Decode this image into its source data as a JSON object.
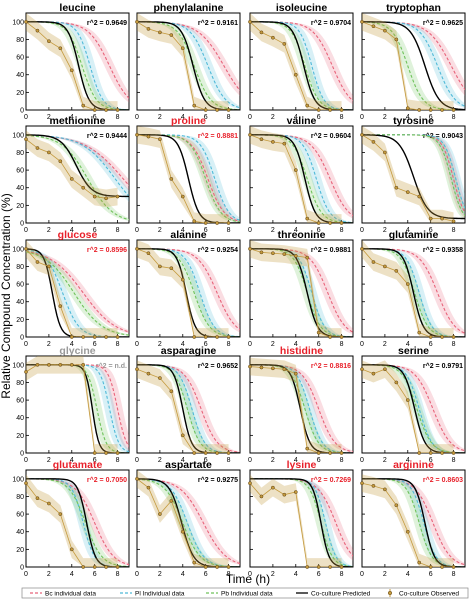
{
  "figure": {
    "ylabel": "Relative Compound Concentration (%)",
    "xlabel": "Time (h)"
  },
  "colors": {
    "bc": "#e8637a",
    "pl": "#4fb9d8",
    "pb": "#6fc25a",
    "predicted": "#000000",
    "observed": "#c49a3e",
    "title_black": "#000000",
    "title_red": "#e8212b",
    "title_gray": "#999999"
  },
  "legend": [
    {
      "key": "bc",
      "label": "Bc individual data",
      "style": "dashed"
    },
    {
      "key": "pl",
      "label": "Pl Individual data",
      "style": "dashed"
    },
    {
      "key": "pb",
      "label": "Pb Individual data",
      "style": "dashed"
    },
    {
      "key": "predicted",
      "label": "Co-culture Predicted",
      "style": "solid"
    },
    {
      "key": "observed",
      "label": "Co-culture Observed",
      "style": "marker"
    }
  ],
  "chart_data": [
    {
      "type": "line",
      "title": "leucine",
      "title_color": "black",
      "r2": "r^2 = 0.9649",
      "ylim": [
        0,
        110
      ],
      "xlim": [
        0,
        9
      ],
      "series": [
        {
          "name": "Bc",
          "midpoint": 7.3,
          "slope": 1.1
        },
        {
          "name": "Pl",
          "midpoint": 5.6,
          "slope": 1.8
        },
        {
          "name": "Pb",
          "midpoint": 4.9,
          "slope": 1.6
        },
        {
          "name": "Co-culture Predicted",
          "midpoint": 4.6,
          "slope": 2.2
        }
      ],
      "observed": {
        "x": [
          0,
          1,
          2,
          3,
          4,
          5,
          6,
          7,
          8
        ],
        "y": [
          100,
          90,
          78,
          70,
          45,
          5,
          0,
          0,
          0
        ]
      }
    },
    {
      "type": "line",
      "title": "phenylalanine",
      "title_color": "black",
      "r2": "r^2 = 0.9161",
      "ylim": [
        0,
        110
      ],
      "xlim": [
        0,
        9
      ],
      "series": [
        {
          "name": "Bc",
          "midpoint": 7.6,
          "slope": 0.9
        },
        {
          "name": "Pl",
          "midpoint": 6.2,
          "slope": 1.3
        },
        {
          "name": "Pb",
          "midpoint": 5.0,
          "slope": 1.4
        },
        {
          "name": "Co-culture Predicted",
          "midpoint": 4.9,
          "slope": 2.0
        }
      ],
      "observed": {
        "x": [
          0,
          1,
          2,
          3,
          4,
          5,
          6,
          7,
          8
        ],
        "y": [
          100,
          92,
          88,
          85,
          70,
          5,
          0,
          0,
          0
        ]
      }
    },
    {
      "type": "line",
      "title": "isoleucine",
      "title_color": "black",
      "r2": "r^2 = 0.9704",
      "ylim": [
        0,
        110
      ],
      "xlim": [
        0,
        9
      ],
      "series": [
        {
          "name": "Bc",
          "midpoint": 7.2,
          "slope": 1.2
        },
        {
          "name": "Pl",
          "midpoint": 5.4,
          "slope": 1.9
        },
        {
          "name": "Pb",
          "midpoint": 4.8,
          "slope": 1.7
        },
        {
          "name": "Co-culture Predicted",
          "midpoint": 4.7,
          "slope": 2.1
        }
      ],
      "observed": {
        "x": [
          0,
          1,
          2,
          3,
          4,
          5,
          6,
          7,
          8
        ],
        "y": [
          100,
          88,
          82,
          75,
          40,
          5,
          0,
          0,
          0
        ]
      }
    },
    {
      "type": "line",
      "title": "tryptophan",
      "title_color": "black",
      "r2": "r^2 = 0.9625",
      "ylim": [
        0,
        110
      ],
      "xlim": [
        0,
        9
      ],
      "series": [
        {
          "name": "Bc",
          "midpoint": 7.8,
          "slope": 1.0
        },
        {
          "name": "Pl",
          "midpoint": 6.6,
          "slope": 1.3
        },
        {
          "name": "Pb",
          "midpoint": 4.0,
          "slope": 1.5
        },
        {
          "name": "Co-culture Predicted",
          "midpoint": 5.5,
          "slope": 1.6
        }
      ],
      "observed": {
        "x": [
          0,
          1,
          2,
          3,
          4,
          5,
          6,
          7,
          8
        ],
        "y": [
          100,
          95,
          90,
          80,
          2,
          0,
          0,
          0,
          0
        ]
      }
    },
    {
      "type": "line",
      "title": "methionine",
      "title_color": "black",
      "r2": "r^2 = 0.9444",
      "ylim": [
        0,
        110
      ],
      "xlim": [
        0,
        9
      ],
      "series": [
        {
          "name": "Bc",
          "midpoint": 8.5,
          "slope": 0.6
        },
        {
          "name": "Pl",
          "midpoint": 7.8,
          "slope": 0.7
        },
        {
          "name": "Pb",
          "midpoint": 5.4,
          "slope": 0.9
        },
        {
          "name": "Co-culture Predicted",
          "midpoint": 4.4,
          "slope": 1.5,
          "floor": 30
        }
      ],
      "observed": {
        "x": [
          0,
          1,
          2,
          3,
          4,
          5,
          6,
          7,
          8
        ],
        "y": [
          95,
          85,
          80,
          70,
          50,
          40,
          30,
          28,
          30
        ]
      }
    },
    {
      "type": "line",
      "title": "proline",
      "title_color": "red",
      "r2": "r^2 = 0.8881",
      "ylim": [
        0,
        110
      ],
      "xlim": [
        0,
        9
      ],
      "series": [
        {
          "name": "Bc",
          "midpoint": 6.2,
          "slope": 1.4
        },
        {
          "name": "Pl",
          "midpoint": 6.8,
          "slope": 1.6
        },
        {
          "name": "Pb",
          "midpoint": 6.0,
          "slope": 1.5
        },
        {
          "name": "Co-culture Predicted",
          "midpoint": 4.5,
          "slope": 2.2
        }
      ],
      "observed": {
        "x": [
          0,
          1,
          2,
          3,
          4,
          5,
          6,
          7,
          8
        ],
        "y": [
          100,
          98,
          95,
          50,
          30,
          2,
          0,
          0,
          0
        ]
      }
    },
    {
      "type": "line",
      "title": "valine",
      "title_color": "black",
      "r2": "r^2 = 0.9604",
      "ylim": [
        0,
        110
      ],
      "xlim": [
        0,
        9
      ],
      "series": [
        {
          "name": "Bc",
          "midpoint": 7.0,
          "slope": 1.2
        },
        {
          "name": "Pl",
          "midpoint": 5.8,
          "slope": 1.7
        },
        {
          "name": "Pb",
          "midpoint": 5.0,
          "slope": 1.6
        },
        {
          "name": "Co-culture Predicted",
          "midpoint": 4.8,
          "slope": 2.2
        }
      ],
      "observed": {
        "x": [
          0,
          1,
          2,
          3,
          4,
          5,
          6,
          7,
          8
        ],
        "y": [
          100,
          95,
          92,
          90,
          60,
          5,
          0,
          0,
          0
        ]
      }
    },
    {
      "type": "line",
      "title": "tyrosine",
      "title_color": "black",
      "r2": "r^2 = 0.9043",
      "ylim": [
        0,
        110
      ],
      "xlim": [
        0,
        9
      ],
      "series": [
        {
          "name": "Bc",
          "midpoint": 8.0,
          "slope": 2.0
        },
        {
          "name": "Pl",
          "midpoint": 8.2,
          "slope": 2.0
        },
        {
          "name": "Pb",
          "midpoint": 7.8,
          "slope": 2.0
        },
        {
          "name": "Co-culture Predicted",
          "midpoint": 4.5,
          "slope": 1.6,
          "floor": 5
        }
      ],
      "observed": {
        "x": [
          0,
          1,
          2,
          3,
          4,
          5,
          6,
          7,
          8
        ],
        "y": [
          100,
          92,
          80,
          40,
          35,
          30,
          5,
          5,
          2
        ]
      }
    },
    {
      "type": "line",
      "title": "glucose",
      "title_color": "red",
      "r2": "r^2 = 0.8596",
      "ylim": [
        0,
        110
      ],
      "xlim": [
        0,
        9
      ],
      "series": [
        {
          "name": "Bc",
          "midpoint": 5.0,
          "slope": 0.7
        },
        {
          "name": "Pl",
          "midpoint": 3.2,
          "slope": 1.4
        },
        {
          "name": "Pb",
          "midpoint": 4.2,
          "slope": 0.8
        },
        {
          "name": "Co-culture Predicted",
          "midpoint": 2.3,
          "slope": 2.8
        }
      ],
      "observed": {
        "x": [
          0,
          1,
          2,
          3,
          4,
          5,
          6,
          7,
          8
        ],
        "y": [
          100,
          85,
          80,
          35,
          0,
          0,
          0,
          0,
          0
        ]
      }
    },
    {
      "type": "line",
      "title": "alanine",
      "title_color": "black",
      "r2": "r^2 = 0.9254",
      "ylim": [
        0,
        110
      ],
      "xlim": [
        0,
        9
      ],
      "series": [
        {
          "name": "Bc",
          "midpoint": 7.0,
          "slope": 1.2
        },
        {
          "name": "Pl",
          "midpoint": 5.5,
          "slope": 1.6
        },
        {
          "name": "Pb",
          "midpoint": 5.0,
          "slope": 1.5
        },
        {
          "name": "Co-culture Predicted",
          "midpoint": 4.3,
          "slope": 2.5
        }
      ],
      "observed": {
        "x": [
          0,
          1,
          2,
          3,
          4,
          5,
          6,
          7,
          8
        ],
        "y": [
          100,
          95,
          80,
          78,
          65,
          0,
          0,
          0,
          0
        ]
      }
    },
    {
      "type": "line",
      "title": "threonine",
      "title_color": "black",
      "r2": "r^2 = 0.9881",
      "ylim": [
        0,
        110
      ],
      "xlim": [
        0,
        9
      ],
      "series": [
        {
          "name": "Bc",
          "midpoint": 6.8,
          "slope": 1.3
        },
        {
          "name": "Pl",
          "midpoint": 5.4,
          "slope": 1.8
        },
        {
          "name": "Pb",
          "midpoint": 5.0,
          "slope": 1.7
        },
        {
          "name": "Co-culture Predicted",
          "midpoint": 5.0,
          "slope": 2.2
        }
      ],
      "observed": {
        "x": [
          0,
          1,
          2,
          3,
          4,
          5,
          6,
          7,
          8
        ],
        "y": [
          100,
          96,
          95,
          94,
          92,
          90,
          5,
          0,
          0
        ]
      }
    },
    {
      "type": "line",
      "title": "glutamine",
      "title_color": "black",
      "r2": "r^2 = 0.9358",
      "ylim": [
        0,
        110
      ],
      "xlim": [
        0,
        9
      ],
      "series": [
        {
          "name": "Bc",
          "midpoint": 6.6,
          "slope": 1.3
        },
        {
          "name": "Pl",
          "midpoint": 5.0,
          "slope": 1.8
        },
        {
          "name": "Pb",
          "midpoint": 4.6,
          "slope": 1.7
        },
        {
          "name": "Co-culture Predicted",
          "midpoint": 4.5,
          "slope": 2.3
        }
      ],
      "observed": {
        "x": [
          0,
          1,
          2,
          3,
          4,
          5,
          6,
          7,
          8
        ],
        "y": [
          100,
          85,
          80,
          75,
          60,
          5,
          0,
          0,
          0
        ]
      }
    },
    {
      "type": "line",
      "title": "glycine",
      "title_color": "gray",
      "r2": "r^2 = n.d.",
      "ylim": [
        0,
        110
      ],
      "xlim": [
        0,
        9
      ],
      "series": [
        {
          "name": "Bc",
          "midpoint": 8.0,
          "slope": 2.5
        },
        {
          "name": "Pl",
          "midpoint": 7.3,
          "slope": 2.5
        },
        {
          "name": "Pb",
          "midpoint": 6.2,
          "slope": 2.5
        },
        {
          "name": "Co-culture Predicted",
          "midpoint": 5.8,
          "slope": 3.5
        }
      ],
      "observed": {
        "x": [
          0,
          1,
          2,
          3,
          4,
          5,
          6,
          7,
          8
        ],
        "y": [
          92,
          100,
          100,
          100,
          100,
          100,
          0,
          0,
          0
        ]
      }
    },
    {
      "type": "line",
      "title": "asparagine",
      "title_color": "black",
      "r2": "r^2 = 0.9652",
      "ylim": [
        0,
        110
      ],
      "xlim": [
        0,
        9
      ],
      "series": [
        {
          "name": "Bc",
          "midpoint": 5.6,
          "slope": 1.4
        },
        {
          "name": "Pl",
          "midpoint": 4.8,
          "slope": 1.8
        },
        {
          "name": "Pb",
          "midpoint": 4.4,
          "slope": 1.8
        },
        {
          "name": "Co-culture Predicted",
          "midpoint": 4.0,
          "slope": 2.6
        }
      ],
      "observed": {
        "x": [
          0,
          1,
          2,
          3,
          4,
          5,
          6,
          7,
          8
        ],
        "y": [
          95,
          90,
          85,
          70,
          20,
          0,
          0,
          0,
          0
        ]
      }
    },
    {
      "type": "line",
      "title": "histidine",
      "title_color": "red",
      "r2": "r^2 = 0.8816",
      "ylim": [
        0,
        110
      ],
      "xlim": [
        0,
        9
      ],
      "series": [
        {
          "name": "Bc",
          "midpoint": 6.0,
          "slope": 1.4
        },
        {
          "name": "Pl",
          "midpoint": 5.2,
          "slope": 1.8
        },
        {
          "name": "Pb",
          "midpoint": 4.8,
          "slope": 1.7
        },
        {
          "name": "Co-culture Predicted",
          "midpoint": 4.4,
          "slope": 2.4
        }
      ],
      "observed": {
        "x": [
          0,
          1,
          2,
          3,
          4,
          5,
          6,
          7,
          8
        ],
        "y": [
          98,
          97,
          96,
          95,
          90,
          5,
          0,
          0,
          0
        ]
      }
    },
    {
      "type": "line",
      "title": "serine",
      "title_color": "black",
      "r2": "r^2 = 0.9791",
      "ylim": [
        0,
        110
      ],
      "xlim": [
        0,
        9
      ],
      "series": [
        {
          "name": "Bc",
          "midpoint": 6.2,
          "slope": 1.3
        },
        {
          "name": "Pl",
          "midpoint": 5.0,
          "slope": 1.8
        },
        {
          "name": "Pb",
          "midpoint": 4.8,
          "slope": 1.6
        },
        {
          "name": "Co-culture Predicted",
          "midpoint": 4.6,
          "slope": 2.2
        }
      ],
      "observed": {
        "x": [
          0,
          1,
          2,
          3,
          4,
          5,
          6,
          7,
          8
        ],
        "y": [
          95,
          90,
          95,
          80,
          60,
          0,
          0,
          0,
          0
        ]
      }
    },
    {
      "type": "line",
      "title": "glutamate",
      "title_color": "red",
      "r2": "r^2 = 0.7050",
      "ylim": [
        0,
        110
      ],
      "xlim": [
        0,
        9
      ],
      "series": [
        {
          "name": "Bc",
          "midpoint": 6.0,
          "slope": 1.2
        },
        {
          "name": "Pl",
          "midpoint": 5.0,
          "slope": 2.0
        },
        {
          "name": "Pb",
          "midpoint": 5.2,
          "slope": 1.4
        },
        {
          "name": "Co-culture Predicted",
          "midpoint": 5.3,
          "slope": 2.6
        }
      ],
      "observed": {
        "x": [
          0,
          1,
          2,
          3,
          4,
          5,
          6,
          7,
          8
        ],
        "y": [
          95,
          78,
          72,
          60,
          20,
          0,
          0,
          0,
          0
        ]
      }
    },
    {
      "type": "line",
      "title": "aspartate",
      "title_color": "black",
      "r2": "r^2 = 0.9275",
      "ylim": [
        0,
        110
      ],
      "xlim": [
        0,
        9
      ],
      "series": [
        {
          "name": "Bc",
          "midpoint": 5.8,
          "slope": 1.0
        },
        {
          "name": "Pl",
          "midpoint": 4.4,
          "slope": 1.4
        },
        {
          "name": "Pb",
          "midpoint": 4.0,
          "slope": 1.3
        },
        {
          "name": "Co-culture Predicted",
          "midpoint": 3.9,
          "slope": 1.9
        }
      ],
      "observed": {
        "x": [
          0,
          1,
          2,
          3,
          4,
          5,
          6,
          7,
          8
        ],
        "y": [
          100,
          90,
          60,
          75,
          40,
          5,
          0,
          0,
          0
        ]
      }
    },
    {
      "type": "line",
      "title": "lysine",
      "title_color": "red",
      "r2": "r^2 = 0.7269",
      "ylim": [
        0,
        110
      ],
      "xlim": [
        0,
        9
      ],
      "series": [
        {
          "name": "Bc",
          "midpoint": 7.5,
          "slope": 1.3
        },
        {
          "name": "Pl",
          "midpoint": 6.6,
          "slope": 2.2
        },
        {
          "name": "Pb",
          "midpoint": 6.2,
          "slope": 2.0
        },
        {
          "name": "Co-culture Predicted",
          "midpoint": 6.2,
          "slope": 2.8
        }
      ],
      "observed": {
        "x": [
          0,
          1,
          2,
          3,
          4,
          5,
          6,
          7,
          8
        ],
        "y": [
          95,
          80,
          90,
          82,
          85,
          0,
          0,
          0,
          0
        ]
      }
    },
    {
      "type": "line",
      "title": "arginine",
      "title_color": "red",
      "r2": "r^2 = 0.8603",
      "ylim": [
        0,
        110
      ],
      "xlim": [
        0,
        9
      ],
      "series": [
        {
          "name": "Bc",
          "midpoint": 6.2,
          "slope": 1.3
        },
        {
          "name": "Pl",
          "midpoint": 5.4,
          "slope": 1.9
        },
        {
          "name": "Pb",
          "midpoint": 5.0,
          "slope": 1.8
        },
        {
          "name": "Co-culture Predicted",
          "midpoint": 5.5,
          "slope": 2.4
        }
      ],
      "observed": {
        "x": [
          0,
          1,
          2,
          3,
          4,
          5,
          6,
          7,
          8
        ],
        "y": [
          95,
          92,
          88,
          70,
          40,
          5,
          0,
          0,
          0
        ]
      }
    }
  ]
}
